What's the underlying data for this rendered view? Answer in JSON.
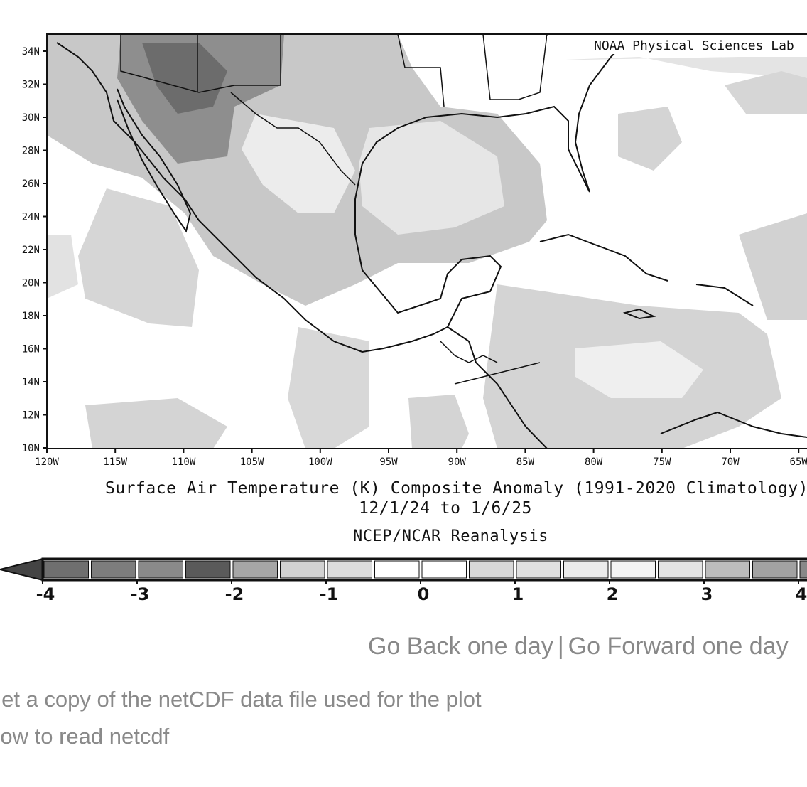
{
  "map": {
    "credit": "NOAA Physical Sciences Lab",
    "lat_ticks": [
      "34N",
      "32N",
      "30N",
      "28N",
      "26N",
      "24N",
      "22N",
      "20N",
      "18N",
      "16N",
      "14N",
      "12N",
      "10N"
    ],
    "lon_ticks": [
      "120W",
      "115W",
      "110W",
      "105W",
      "100W",
      "95W",
      "90W",
      "85W",
      "80W",
      "75W",
      "70W",
      "65W"
    ]
  },
  "caption": {
    "title": "Surface Air Temperature (K) Composite Anomaly (1991-2020 Climatology)",
    "dates": "12/1/24  to 1/6/25",
    "source": "NCEP/NCAR Reanalysis"
  },
  "colorbar": {
    "labels": [
      "-4",
      "-3",
      "-2",
      "-1",
      "0",
      "1",
      "2",
      "3",
      "4"
    ],
    "colors": [
      "#6f6f6f",
      "#7d7d7d",
      "#8a8a8a",
      "#5a5a5a",
      "#a6a6a6",
      "#d2d2d2",
      "#dcdcdc",
      "#ffffff",
      "#ffffff",
      "#d8d8d8",
      "#e0e0e0",
      "#ebebeb",
      "#f4f4f4",
      "#e4e4e4",
      "#bcbcbc",
      "#a2a2a2",
      "#888888"
    ]
  },
  "nav": {
    "back": "Go Back one day",
    "separator": "|",
    "forward": "Go Forward one day"
  },
  "links": {
    "file": "Get a copy of the netCDF data file used for the plot",
    "read": "How to read netcdf"
  }
}
